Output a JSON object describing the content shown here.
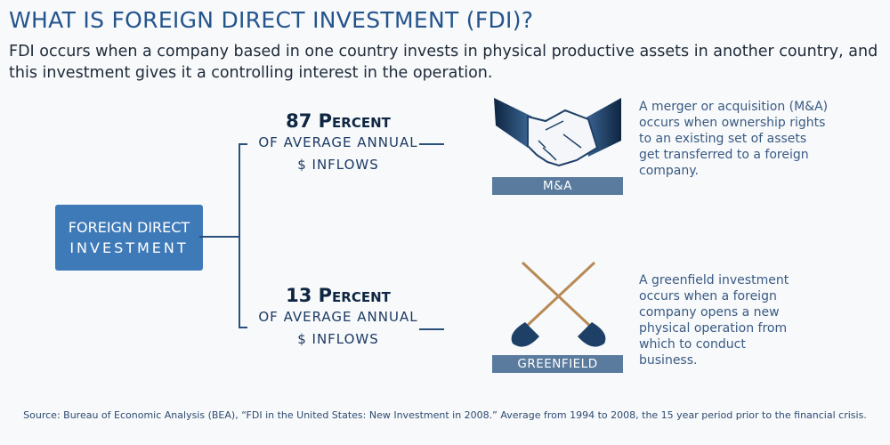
{
  "title": "WHAT IS FOREIGN DIRECT INVESTMENT (FDI)?",
  "subtitle": "FDI occurs when a company based in one country invests in physical productive assets in another country, and this investment gives it a controlling interest in the operation.",
  "root": {
    "line1": "FOREIGN DIRECT",
    "line2": "INVESTMENT",
    "color": "#3f7ab8"
  },
  "branches": [
    {
      "number": "87",
      "percent_word": "Percent",
      "line2": "OF AVERAGE ANNUAL",
      "line3": "$ INFLOWS",
      "icon": "handshake-icon",
      "label": "M&A",
      "description": "A merger or acquisition (M&A) occurs when ownership rights to an existing set of assets get transferred to a foreign company."
    },
    {
      "number": "13",
      "percent_word": "Percent",
      "line2": "OF AVERAGE ANNUAL",
      "line3": "$ INFLOWS",
      "icon": "crossed-shovels-icon",
      "label": "GREENFIELD",
      "description": "A greenfield investment occurs when a foreign company opens a new physical operation from which to conduct business."
    }
  ],
  "source": "Source: Bureau of Economic Analysis (BEA), “FDI in the United States: New Investment in 2008.” Average from 1994 to 2008, the 15 year period prior to the financial crisis."
}
